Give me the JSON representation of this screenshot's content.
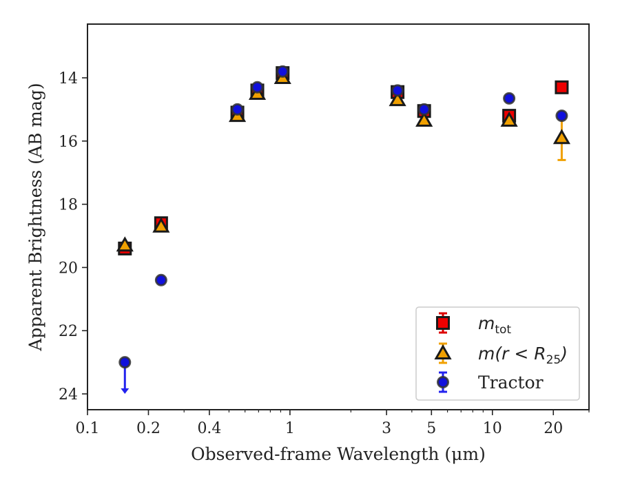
{
  "chart_data": {
    "type": "scatter",
    "xlabel": "Observed-frame Wavelength (μm)",
    "ylabel": "Apparent Brightness (AB mag)",
    "xscale": "log",
    "xlim": [
      0.1,
      30
    ],
    "ylim": [
      24.5,
      12.3
    ],
    "y_inverted": true,
    "x_ticks": [
      0.1,
      0.2,
      0.4,
      1,
      3,
      5,
      10,
      20
    ],
    "x_tick_labels": [
      "0.1",
      "0.2",
      "0.4",
      "1",
      "3",
      "5",
      "10",
      "20"
    ],
    "y_ticks": [
      14,
      16,
      18,
      20,
      22,
      24
    ],
    "y_tick_labels": [
      "14",
      "16",
      "18",
      "20",
      "22",
      "24"
    ],
    "grid": false,
    "legend_position": "bottom-right",
    "series": [
      {
        "name": "m_tot",
        "label_main": "m",
        "label_sub": "tot",
        "marker": "square",
        "face_color": "#ee0000",
        "edge_color": "#1a1a1a",
        "errbar_color": "#dd0000",
        "x": [
          0.153,
          0.231,
          0.55,
          0.69,
          0.92,
          3.4,
          4.6,
          12.1,
          22.0
        ],
        "y": [
          19.4,
          18.6,
          15.1,
          14.4,
          13.85,
          14.45,
          15.05,
          15.2,
          14.3
        ]
      },
      {
        "name": "m(r<R25)",
        "label_main": "m(r < R",
        "label_sub": "25",
        "label_close": ")",
        "marker": "triangle",
        "face_color": "#f0a000",
        "edge_color": "#1a1a1a",
        "errbar_color": "#f0a000",
        "x": [
          0.153,
          0.231,
          0.55,
          0.69,
          0.92,
          3.4,
          4.6,
          12.1,
          22.0
        ],
        "y": [
          19.3,
          18.7,
          15.2,
          14.5,
          14.0,
          14.7,
          15.35,
          15.35,
          15.9
        ],
        "yerr": [
          0,
          0,
          0,
          0,
          0,
          0,
          0,
          0,
          0.7
        ]
      },
      {
        "name": "Tractor",
        "marker": "circle",
        "face_color": "#1010dd",
        "edge_color": "#333333",
        "errbar_color": "#2222ee",
        "x": [
          0.153,
          0.231,
          0.55,
          0.69,
          0.92,
          3.4,
          4.6,
          12.1,
          22.0
        ],
        "y": [
          23.0,
          20.4,
          15.0,
          14.3,
          13.8,
          14.4,
          15.0,
          14.65,
          15.2
        ],
        "upper_limit": [
          true,
          false,
          false,
          false,
          false,
          false,
          false,
          false,
          false
        ]
      }
    ]
  }
}
